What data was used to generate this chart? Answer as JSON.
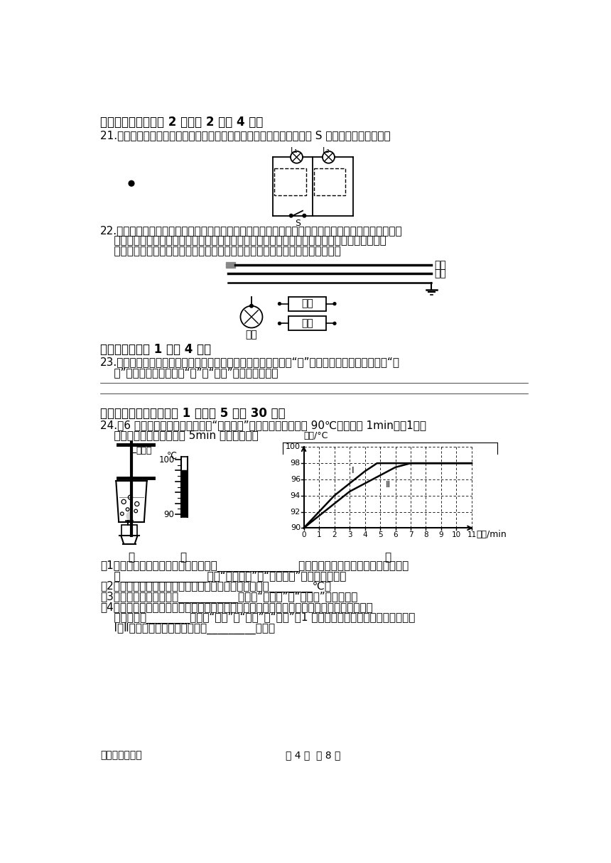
{
  "bg_color": "#ffffff",
  "title_section3": "三、作图题（每小题 2 分，公 2 小题 4 分）",
  "q21_text": "21.如图所示，在虚线框内分别填入电压表和电流表的元件符号，使开关 S 闭合后两灯都能发光。",
  "q22_text_line1": "22.科研人员制成了「光控开关」（能在天黑时自动闭合，天亮时自动断开）和「声控开关」（能在有声",
  "q22_text_line2": "    音发出时自动闭合，无声时自动断开）。请将如图中的光控开关、声控开关、灯泡用笔画线代替",
  "q22_text_line3": "    导线正确连入电路，设计出只有在天黑且有声音时灯才亮的自动控制安全电路。",
  "title_section4": "四、简答题（公 1 小题 4 分）",
  "q23_text_line1": "23.夏天，刚从冰算里拿出来的冰棍包装纸上面挂有一层白花花的“粉”，剥去包装纸，冰棍周围冒“白",
  "q23_text_line2": "    气”。请分别解释其中的“粉”和“白气”是怎样形成的。",
  "title_section5": "五、实验探究题（每空格 1 分，公 5 小题 30 分）",
  "q24_text_line1": "24.（6 分）用图甲所示的装置探究“水的汸腾”的实验，当水温升到 90℃时，每隔 1min记录1次温",
  "q24_text_line2": "    度计的示数，直到水汸腾 5min 后停止读数。",
  "q24_sub1": "（1）除温度计外，还需要的测量工具是_______________。如图甲所示，在组装实验装置时，应",
  "q24_sub1b": "    按________________（填“自上而下”或“自下而上”）的顺序组装。",
  "q24_sub2": "（2）某次数据没有记录，当时温度计示数如图乙所示，为________℃。",
  "q24_sub3": "（3）图甲所示的情景，是___________（选填“汸腾前”或“汸腾时”）的情景。",
  "q24_sub4_line1": "（4）图丁是两组同学分别根据实验数据绘制的水汸腾时温度随时间变化的图象，由图象可知当",
  "q24_sub4_line2": "    时的大气压________（选填“大于”、“等于”或“小于”）1 个标准大气压；由图象还可以看出，",
  "q24_sub4_line3": "    Ⅰ、Ⅱ两组图线不同的原因是水的_________不同。",
  "footer_left": "九年级物理试卷",
  "footer_center": "第 4 页  公 8 页"
}
